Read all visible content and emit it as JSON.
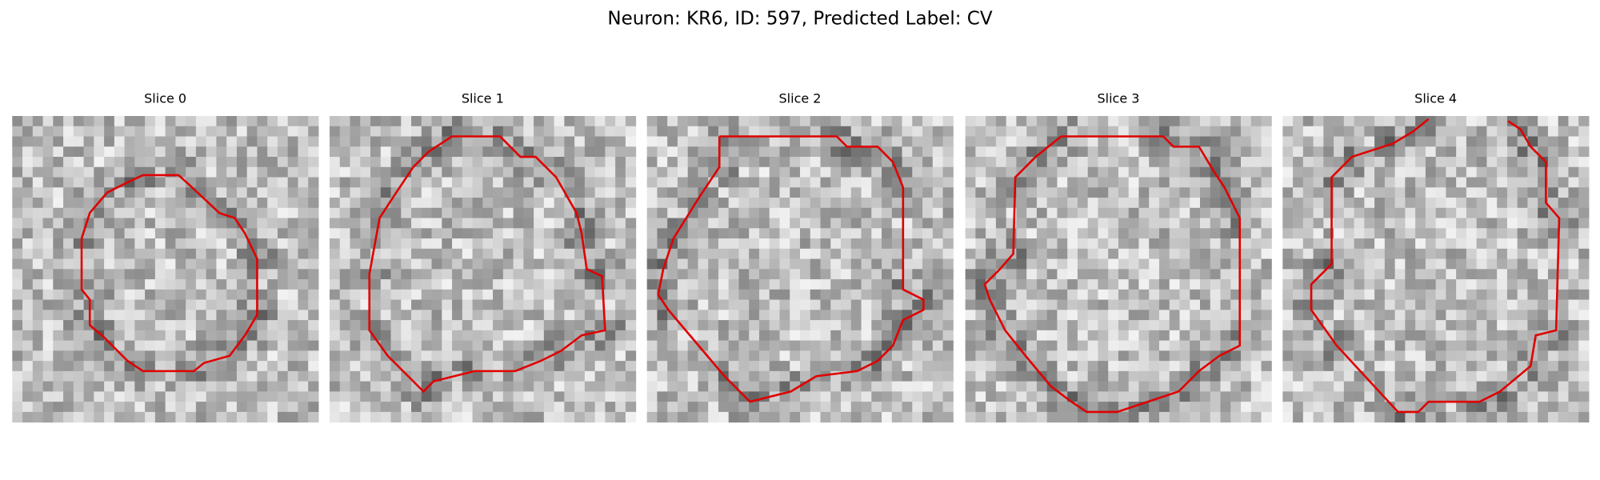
{
  "title": "Neuron: KR6, ID: 597, Predicted Label: CV",
  "panels": [
    {
      "title": "Slice 0"
    },
    {
      "title": "Slice 1"
    },
    {
      "title": "Slice 2"
    },
    {
      "title": "Slice 3"
    },
    {
      "title": "Slice 4"
    }
  ]
}
